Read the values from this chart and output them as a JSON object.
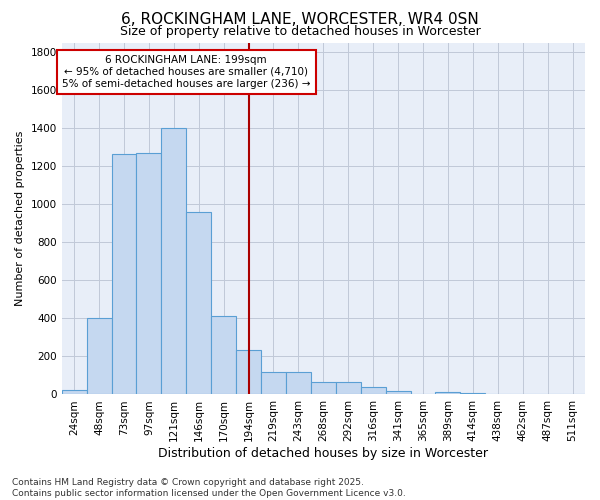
{
  "title": "6, ROCKINGHAM LANE, WORCESTER, WR4 0SN",
  "subtitle": "Size of property relative to detached houses in Worcester",
  "xlabel": "Distribution of detached houses by size in Worcester",
  "ylabel": "Number of detached properties",
  "categories": [
    "24sqm",
    "48sqm",
    "73sqm",
    "97sqm",
    "121sqm",
    "146sqm",
    "170sqm",
    "194sqm",
    "219sqm",
    "243sqm",
    "268sqm",
    "292sqm",
    "316sqm",
    "341sqm",
    "365sqm",
    "389sqm",
    "414sqm",
    "438sqm",
    "462sqm",
    "487sqm",
    "511sqm"
  ],
  "values": [
    25,
    400,
    1265,
    1270,
    1400,
    960,
    415,
    235,
    120,
    120,
    65,
    65,
    40,
    20,
    0,
    15,
    10,
    0,
    0,
    0,
    0
  ],
  "bar_color": "#c5d8f0",
  "bar_edge_color": "#5a9fd4",
  "annotation_text": "6 ROCKINGHAM LANE: 199sqm\n← 95% of detached houses are smaller (4,710)\n5% of semi-detached houses are larger (236) →",
  "annotation_box_color": "#ffffff",
  "annotation_box_edge_color": "#cc0000",
  "vline_color": "#aa0000",
  "footer": "Contains HM Land Registry data © Crown copyright and database right 2025.\nContains public sector information licensed under the Open Government Licence v3.0.",
  "bg_color": "#ffffff",
  "plot_bg_color": "#e8eef8",
  "grid_color": "#c0c8d8",
  "ylim": [
    0,
    1850
  ],
  "yticks": [
    0,
    200,
    400,
    600,
    800,
    1000,
    1200,
    1400,
    1600,
    1800
  ],
  "vline_index": 7,
  "title_fontsize": 11,
  "subtitle_fontsize": 9,
  "ylabel_fontsize": 8,
  "xlabel_fontsize": 9,
  "tick_fontsize": 7.5,
  "annot_fontsize": 7.5,
  "footer_fontsize": 6.5
}
